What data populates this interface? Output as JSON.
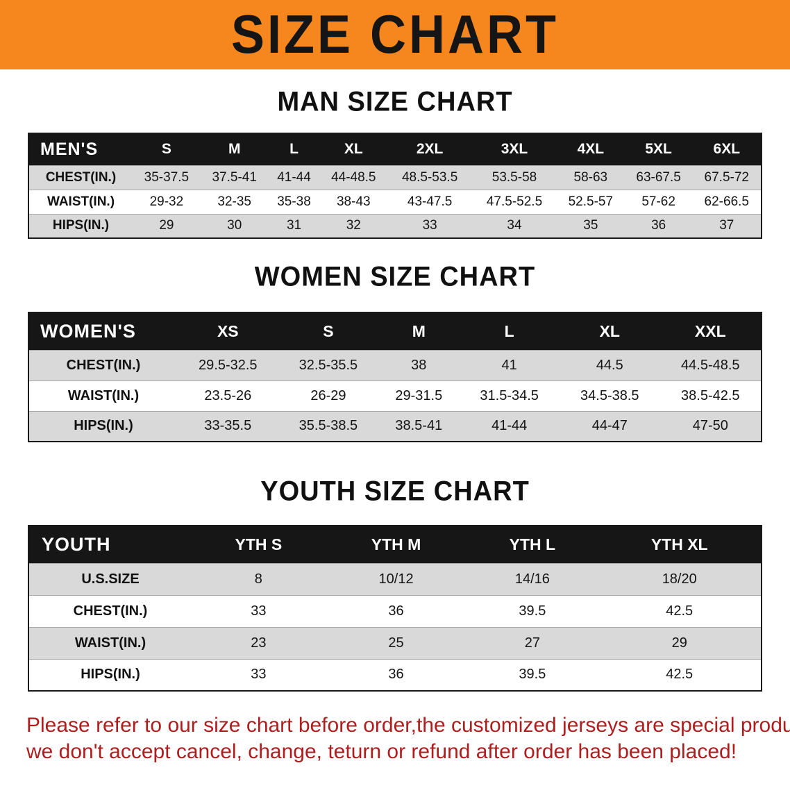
{
  "banner": {
    "title": "SIZE CHART",
    "bg_color": "#F6871F",
    "text_color": "#151515"
  },
  "sections": [
    {
      "id": "men",
      "heading": "MAN SIZE CHART",
      "table": {
        "corner_label": "MEN'S",
        "columns": [
          "S",
          "M",
          "L",
          "XL",
          "2XL",
          "3XL",
          "4XL",
          "5XL",
          "6XL"
        ],
        "rows": [
          {
            "label": "CHEST(IN.)",
            "values": [
              "35-37.5",
              "37.5-41",
              "41-44",
              "44-48.5",
              "48.5-53.5",
              "53.5-58",
              "58-63",
              "63-67.5",
              "67.5-72"
            ]
          },
          {
            "label": "WAIST(IN.)",
            "values": [
              "29-32",
              "32-35",
              "35-38",
              "38-43",
              "43-47.5",
              "47.5-52.5",
              "52.5-57",
              "57-62",
              "62-66.5"
            ]
          },
          {
            "label": "HIPS(IN.)",
            "values": [
              "29",
              "30",
              "31",
              "32",
              "33",
              "34",
              "35",
              "36",
              "37"
            ]
          }
        ]
      }
    },
    {
      "id": "women",
      "heading": "WOMEN SIZE CHART",
      "table": {
        "corner_label": "WOMEN'S",
        "columns": [
          "XS",
          "S",
          "M",
          "L",
          "XL",
          "XXL"
        ],
        "rows": [
          {
            "label": "CHEST(IN.)",
            "values": [
              "29.5-32.5",
              "32.5-35.5",
              "38",
              "41",
              "44.5",
              "44.5-48.5"
            ]
          },
          {
            "label": "WAIST(IN.)",
            "values": [
              "23.5-26",
              "26-29",
              "29-31.5",
              "31.5-34.5",
              "34.5-38.5",
              "38.5-42.5"
            ]
          },
          {
            "label": "HIPS(IN.)",
            "values": [
              "33-35.5",
              "35.5-38.5",
              "38.5-41",
              "41-44",
              "44-47",
              "47-50"
            ]
          }
        ]
      }
    },
    {
      "id": "youth",
      "heading": "YOUTH SIZE CHART",
      "table": {
        "corner_label": "YOUTH",
        "columns": [
          "YTH S",
          "YTH M",
          "YTH L",
          "YTH XL"
        ],
        "rows": [
          {
            "label": "U.S.SIZE",
            "values": [
              "8",
              "10/12",
              "14/16",
              "18/20"
            ]
          },
          {
            "label": "CHEST(IN.)",
            "values": [
              "33",
              "36",
              "39.5",
              "42.5"
            ]
          },
          {
            "label": "WAIST(IN.)",
            "values": [
              "23",
              "25",
              "27",
              "29"
            ]
          },
          {
            "label": "HIPS(IN.)",
            "values": [
              "33",
              "36",
              "39.5",
              "42.5"
            ]
          }
        ]
      }
    }
  ],
  "footer": {
    "color": "#AD1F1F",
    "lines": [
      "Please refer to our size chart before order,the customized jerseys are special products,",
      "we don't accept cancel, change, teturn or refund after order has been placed!"
    ]
  }
}
